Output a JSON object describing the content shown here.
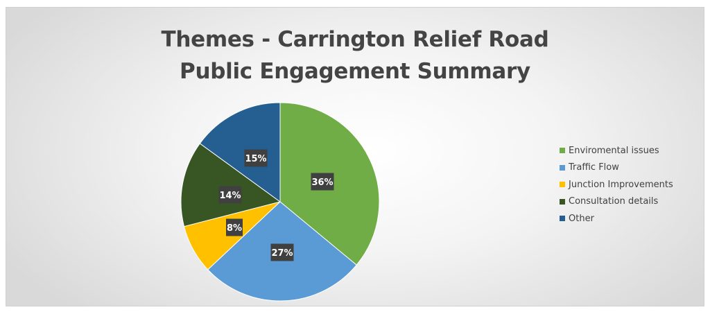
{
  "chart_data": {
    "type": "pie",
    "title": "Themes - Carrington Relief Road",
    "subtitle": "Public Engagement Summary",
    "categories": [
      "Enviromental issues",
      "Traffic Flow",
      "Junction Improvements",
      "Consultation details",
      "Other"
    ],
    "values": [
      36,
      27,
      8,
      14,
      15
    ],
    "data_labels": [
      "36%",
      "27%",
      "8%",
      "14%",
      "15%"
    ],
    "colors": [
      "#70ad47",
      "#5b9bd5",
      "#ffc000",
      "#375623",
      "#255e91"
    ],
    "legend_position": "right",
    "start_angle": "12 o'clock",
    "direction": "clockwise"
  }
}
